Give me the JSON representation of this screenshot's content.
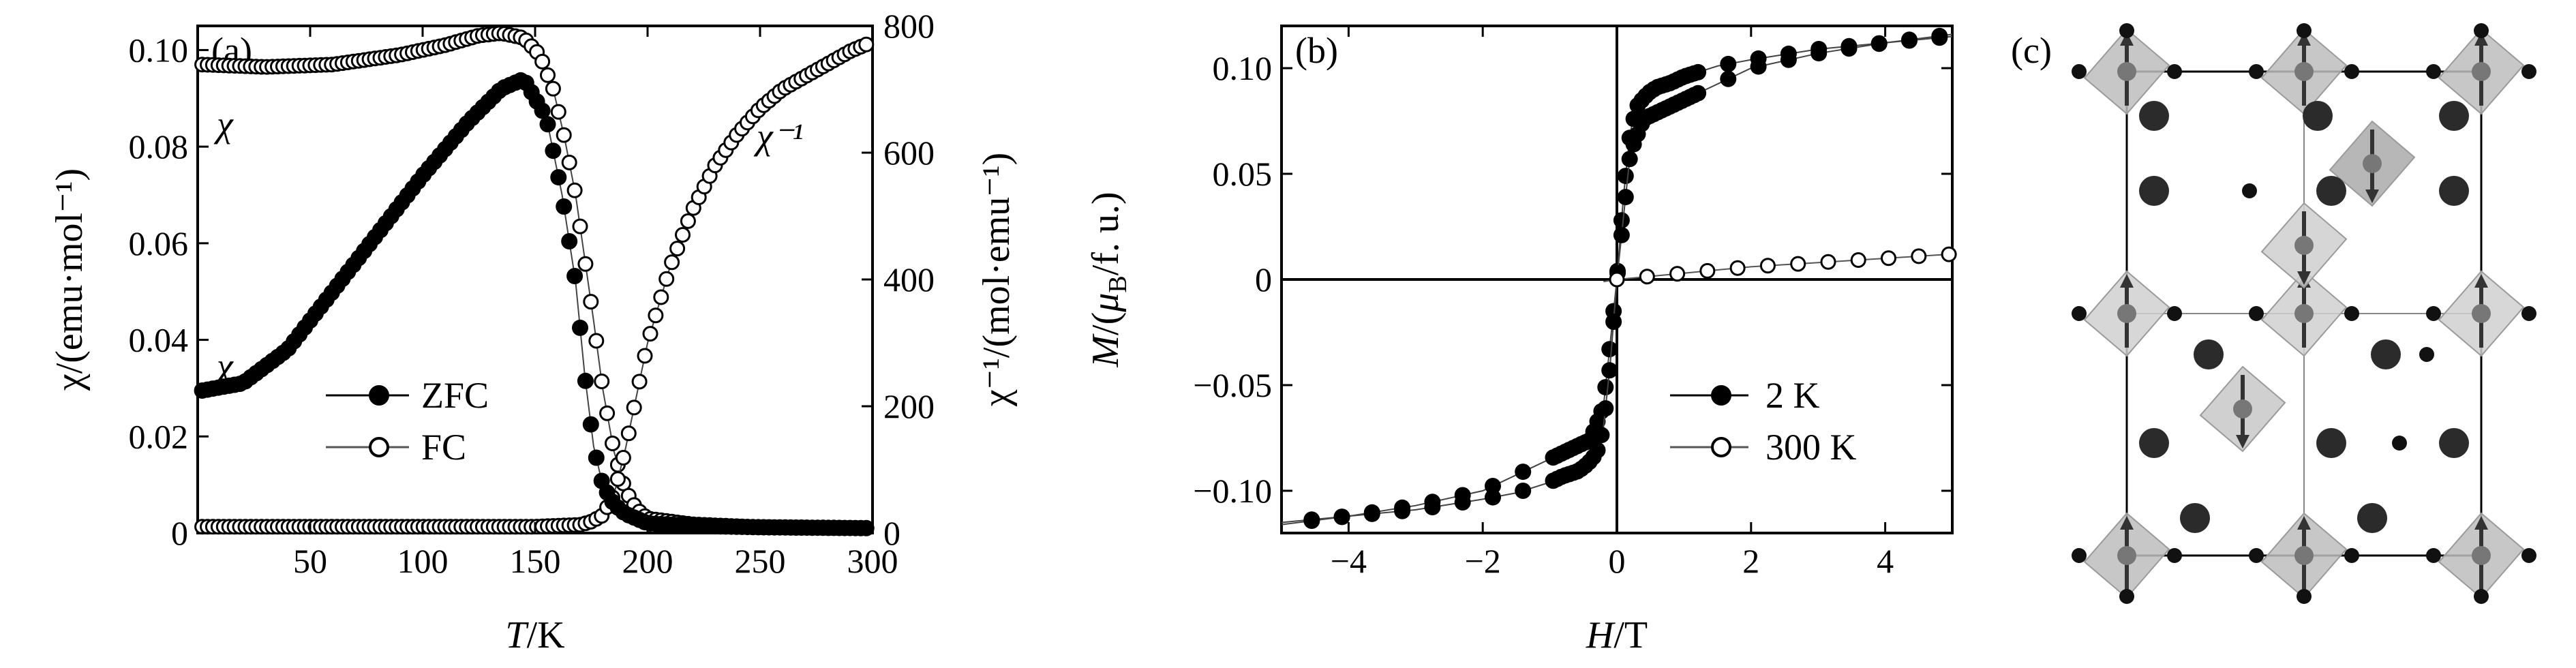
{
  "chart_data": [
    {
      "type": "scatter",
      "panel_label": "(a)",
      "xlabel_italic": "T",
      "xlabel_rest": "/K",
      "ylabel_left": "χ/(emu·mol⁻¹)",
      "ylabel_right": "χ⁻¹/(mol·emu⁻¹)",
      "xlim": [
        0,
        300
      ],
      "ylim_left": [
        0,
        0.105
      ],
      "ylim_right": [
        0,
        800
      ],
      "x_ticks": [
        "50",
        "100",
        "150",
        "200",
        "250",
        "300"
      ],
      "yleft_ticks": [
        "0",
        "0.02",
        "0.04",
        "0.06",
        "0.08",
        "0.10"
      ],
      "yright_ticks": [
        "0",
        "200",
        "400",
        "600",
        "800"
      ],
      "annotations": {
        "chi_fc": "χ",
        "chi_zfc": "χ",
        "chi_inv": "χ⁻¹"
      },
      "legend": [
        {
          "name": "ZFC",
          "marker": "filled-circle"
        },
        {
          "name": "FC",
          "marker": "open-circle"
        }
      ],
      "series": [
        {
          "name": "ZFC",
          "axis": "left",
          "x": [
            2,
            20,
            40,
            60,
            80,
            100,
            120,
            135,
            145,
            155,
            162,
            168,
            172,
            176,
            180,
            185,
            190,
            200,
            220,
            250,
            300
          ],
          "values": [
            0.0295,
            0.031,
            0.038,
            0.05,
            0.062,
            0.074,
            0.085,
            0.092,
            0.094,
            0.086,
            0.07,
            0.052,
            0.033,
            0.018,
            0.01,
            0.006,
            0.004,
            0.002,
            0.0015,
            0.0012,
            0.001
          ]
        },
        {
          "name": "FC",
          "axis": "left",
          "x": [
            2,
            30,
            60,
            90,
            110,
            125,
            135,
            145,
            152,
            158,
            163,
            168,
            172,
            176,
            180,
            185,
            190,
            195,
            200,
            220,
            250,
            300
          ],
          "values": [
            0.097,
            0.0965,
            0.097,
            0.099,
            0.101,
            0.103,
            0.1035,
            0.1025,
            0.099,
            0.092,
            0.082,
            0.07,
            0.057,
            0.044,
            0.03,
            0.017,
            0.009,
            0.005,
            0.003,
            0.0018,
            0.0012,
            0.001
          ]
        },
        {
          "name": "χ⁻¹ (FC)",
          "axis": "right",
          "x": [
            2,
            50,
            100,
            150,
            170,
            175,
            180,
            185,
            190,
            195,
            200,
            210,
            220,
            230,
            240,
            250,
            260,
            275,
            290,
            300
          ],
          "values": [
            10,
            10,
            10,
            10,
            13,
            18,
            28,
            60,
            130,
            215,
            300,
            420,
            510,
            580,
            630,
            670,
            700,
            730,
            760,
            775
          ]
        }
      ]
    },
    {
      "type": "line",
      "panel_label": "(b)",
      "xlabel_italic": "H",
      "xlabel_rest": "/T",
      "ylabel": "M/(μB/f. u.)",
      "xlim": [
        -5,
        5
      ],
      "ylim": [
        -0.12,
        0.12
      ],
      "x_ticks": [
        "−4",
        "−2",
        "0",
        "2",
        "4"
      ],
      "y_ticks": [
        "−0.10",
        "−0.05",
        "0",
        "0.05",
        "0.10"
      ],
      "legend": [
        {
          "name": "2 K",
          "marker": "filled-circle"
        },
        {
          "name": "300 K",
          "marker": "open-circle"
        }
      ],
      "series": [
        {
          "name": "2 K",
          "loop": true,
          "x": [
            -5,
            -4,
            -3,
            -2,
            -1.2,
            -0.8,
            -0.4,
            -0.2,
            -0.1,
            0,
            0.1,
            0.2,
            0.3,
            0.4,
            0.5,
            0.6,
            0.8,
            1.0,
            1.5,
            2,
            3,
            4,
            5
          ],
          "values": [
            -0.116,
            -0.112,
            -0.107,
            -0.1,
            -0.088,
            -0.082,
            -0.076,
            -0.06,
            -0.03,
            0.0,
            0.04,
            0.07,
            0.082,
            0.086,
            0.089,
            0.091,
            0.093,
            0.096,
            0.101,
            0.104,
            0.109,
            0.112,
            0.115
          ]
        },
        {
          "name": "300 K",
          "x": [
            -0.2,
            0,
            0.5,
            1,
            1.5,
            2,
            2.5,
            3,
            3.5,
            4,
            4.5,
            5
          ],
          "values": [
            -0.001,
            0.0,
            0.0015,
            0.003,
            0.0045,
            0.006,
            0.007,
            0.008,
            0.009,
            0.01,
            0.011,
            0.012
          ]
        }
      ]
    }
  ],
  "panel_c": {
    "label": "(c)"
  }
}
